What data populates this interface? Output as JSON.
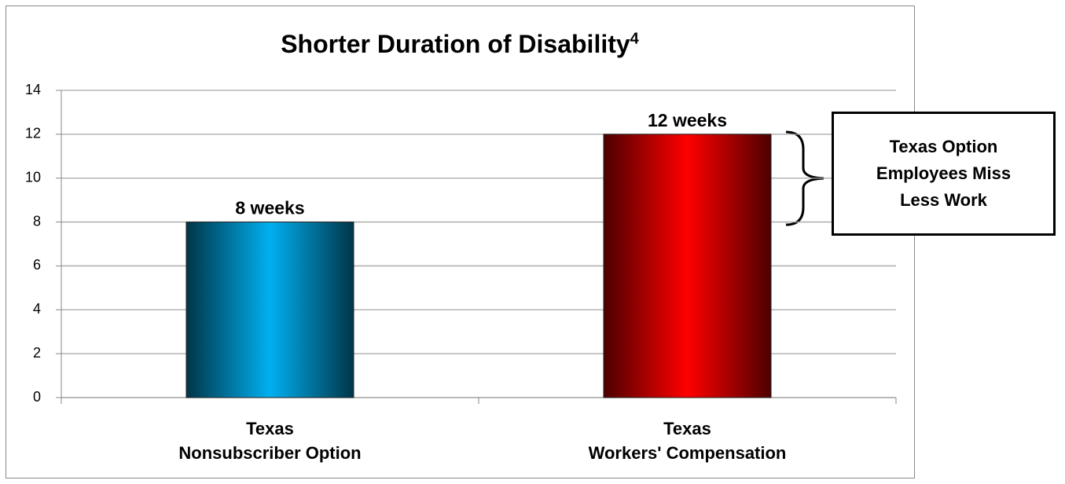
{
  "chart_data": {
    "type": "bar",
    "title": "Shorter Duration of Disability",
    "title_note": "4",
    "categories": [
      "Texas\nNonsubscriber Option",
      "Texas\nWorkers' Compensation"
    ],
    "values": [
      8,
      12
    ],
    "value_labels": [
      "8 weeks",
      "12 weeks"
    ],
    "colors": [
      "#00b0f0",
      "#ff0000"
    ],
    "ylim": [
      0,
      14
    ],
    "yticks": [
      0,
      2,
      4,
      6,
      8,
      10,
      12,
      14
    ],
    "grid": true,
    "annotation": "Texas Option\nEmployees Miss\nLess Work"
  }
}
